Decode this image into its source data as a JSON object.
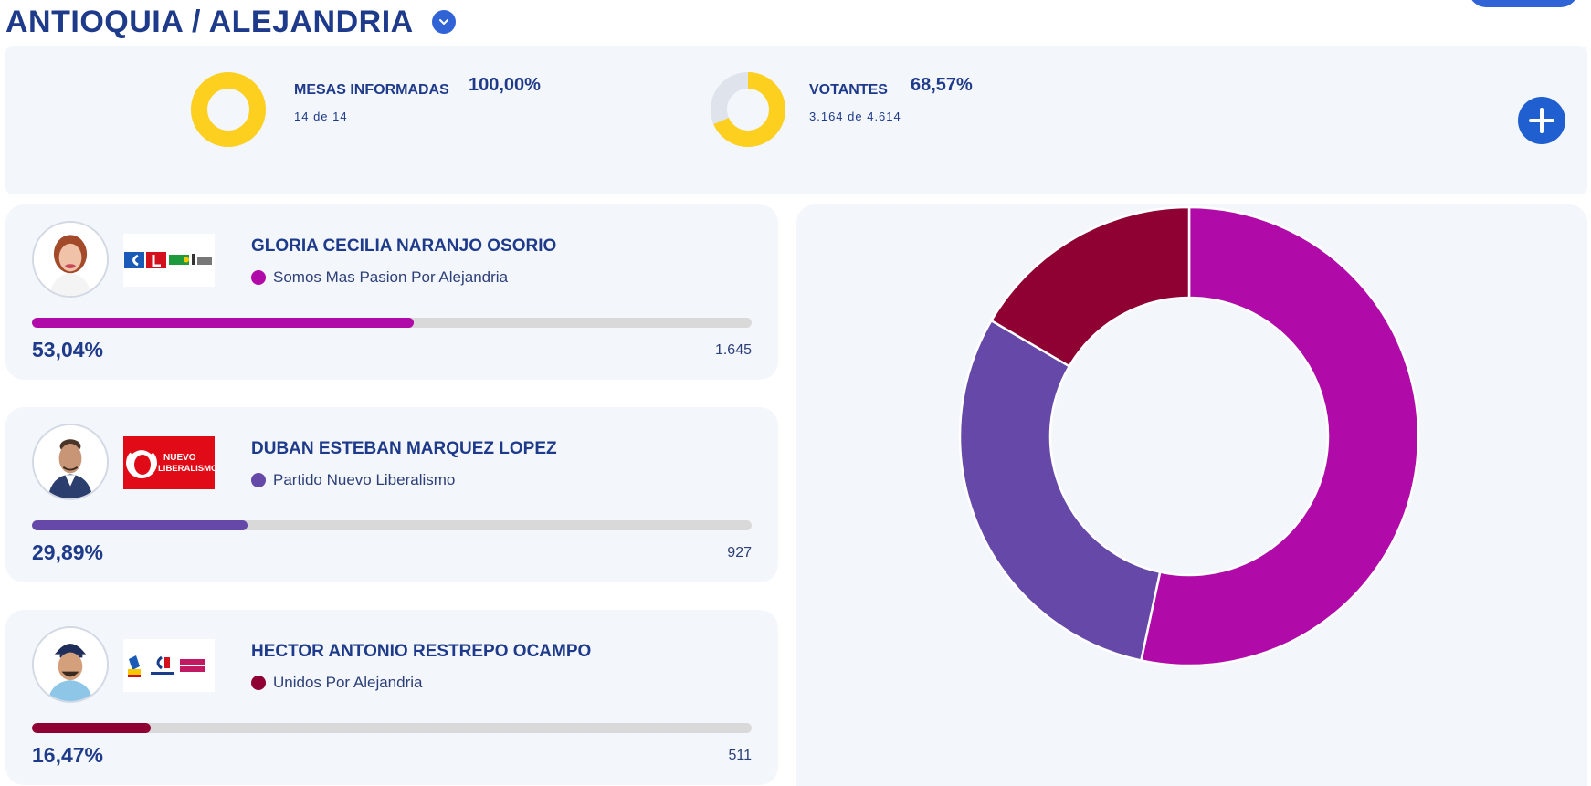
{
  "header": {
    "title": "ANTIOQUIA / ALEJANDRIA",
    "dropdown_icon": "chevron-down-icon"
  },
  "stats": {
    "mesas": {
      "label": "MESAS INFORMADAS",
      "percent": "100,00%",
      "detail": "14 de 14",
      "fraction": 1.0
    },
    "votantes": {
      "label": "VOTANTES",
      "percent": "68,57%",
      "detail": "3.164 de 4.614",
      "fraction": 0.6857
    },
    "colors": {
      "accent": "#fdd020",
      "track": "#dfe3ec"
    },
    "expand_icon": "plus-icon"
  },
  "candidates": [
    {
      "name": "GLORIA CECILIA NARANJO OSORIO",
      "party": "Somos Mas Pasion Por Alejandria",
      "percent": "53,04%",
      "share": 0.5304,
      "votes": "1.645",
      "color": "#b00aa8"
    },
    {
      "name": "DUBAN ESTEBAN MARQUEZ LOPEZ",
      "party": "Partido Nuevo Liberalismo",
      "percent": "29,89%",
      "share": 0.2989,
      "votes": "927",
      "color": "#6548a8"
    },
    {
      "name": "HECTOR ANTONIO RESTREPO OCAMPO",
      "party": "Unidos Por Alejandria",
      "percent": "16,47%",
      "share": 0.1647,
      "votes": "511",
      "color": "#8e0132"
    }
  ],
  "party_logos": {
    "nuevo_liberalismo_text_1": "NUEVO",
    "nuevo_liberalismo_text_2": "LIBERALISMO"
  },
  "chart_data": {
    "type": "pie",
    "categories": [
      "Somos Mas Pasion Por Alejandria",
      "Partido Nuevo Liberalismo",
      "Unidos Por Alejandria"
    ],
    "values": [
      53.04,
      29.89,
      16.47
    ],
    "colors": [
      "#b00aa8",
      "#6548a8",
      "#8e0132"
    ],
    "donut": true
  }
}
